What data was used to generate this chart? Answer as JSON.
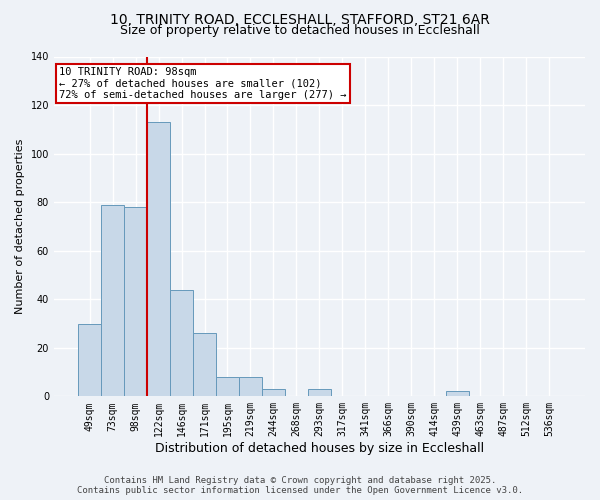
{
  "title_line1": "10, TRINITY ROAD, ECCLESHALL, STAFFORD, ST21 6AR",
  "title_line2": "Size of property relative to detached houses in Eccleshall",
  "bar_labels": [
    "49sqm",
    "73sqm",
    "98sqm",
    "122sqm",
    "146sqm",
    "171sqm",
    "195sqm",
    "219sqm",
    "244sqm",
    "268sqm",
    "293sqm",
    "317sqm",
    "341sqm",
    "366sqm",
    "390sqm",
    "414sqm",
    "439sqm",
    "463sqm",
    "487sqm",
    "512sqm",
    "536sqm"
  ],
  "bar_heights": [
    30,
    79,
    78,
    113,
    44,
    26,
    8,
    8,
    3,
    0,
    3,
    0,
    0,
    0,
    0,
    0,
    2,
    0,
    0,
    0,
    0
  ],
  "bar_color": "#c8d8e8",
  "bar_edge_color": "#6699bb",
  "ylim": [
    0,
    140
  ],
  "yticks": [
    0,
    20,
    40,
    60,
    80,
    100,
    120,
    140
  ],
  "ylabel": "Number of detached properties",
  "xlabel": "Distribution of detached houses by size in Eccleshall",
  "vline_index": 2,
  "vline_color": "#cc0000",
  "annotation_title": "10 TRINITY ROAD: 98sqm",
  "annotation_line1": "← 27% of detached houses are smaller (102)",
  "annotation_line2": "72% of semi-detached houses are larger (277) →",
  "annotation_box_color": "#ffffff",
  "annotation_box_edge_color": "#cc0000",
  "footer_line1": "Contains HM Land Registry data © Crown copyright and database right 2025.",
  "footer_line2": "Contains public sector information licensed under the Open Government Licence v3.0.",
  "background_color": "#eef2f7",
  "grid_color": "#ffffff",
  "title_fontsize": 10,
  "subtitle_fontsize": 9,
  "ylabel_fontsize": 8,
  "xlabel_fontsize": 9,
  "tick_fontsize": 7,
  "annotation_fontsize": 7.5,
  "footer_fontsize": 6.5
}
